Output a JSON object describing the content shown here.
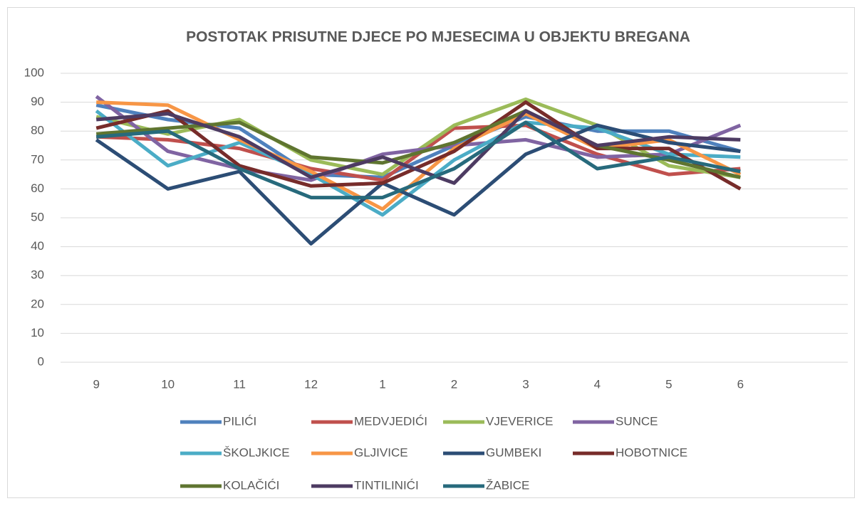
{
  "chart_data": {
    "type": "line",
    "title": "POSTOTAK PRISUTNE DJECE PO MJESECIMA U OBJEKTU BREGANA",
    "categories": [
      "9",
      "10",
      "11",
      "12",
      "1",
      "2",
      "3",
      "4",
      "5",
      "6",
      null
    ],
    "ylim": [
      0,
      100
    ],
    "yticks": [
      0,
      10,
      20,
      30,
      40,
      50,
      60,
      70,
      80,
      90,
      100
    ],
    "grid": true,
    "legend": "bottom",
    "series": [
      {
        "name": "PILIĆI",
        "color": "#4f81bd",
        "values": [
          89,
          84,
          81,
          65,
          64,
          75,
          85,
          80,
          80,
          73,
          null
        ]
      },
      {
        "name": "MEDVJEDIĆI",
        "color": "#c0504d",
        "values": [
          78,
          77,
          74,
          67,
          63,
          81,
          82,
          72,
          65,
          67,
          null
        ]
      },
      {
        "name": "VJEVERICE",
        "color": "#9bbb59",
        "values": [
          85,
          79,
          84,
          70,
          65,
          82,
          91,
          82,
          68,
          64,
          null
        ]
      },
      {
        "name": "SUNCE",
        "color": "#8064a2",
        "values": [
          92,
          73,
          67,
          63,
          72,
          75,
          77,
          71,
          72,
          82,
          null
        ]
      },
      {
        "name": "ŠKOLJKICE",
        "color": "#4bacc6",
        "values": [
          87,
          68,
          76,
          65,
          51,
          70,
          83,
          81,
          72,
          71,
          null
        ]
      },
      {
        "name": "GLJIVICE",
        "color": "#f79646",
        "values": [
          90,
          89,
          77,
          66,
          53,
          74,
          86,
          74,
          77,
          65,
          null
        ]
      },
      {
        "name": "GUMBEKI",
        "color": "#2c4d75",
        "values": [
          77,
          60,
          66,
          41,
          62,
          51,
          72,
          82,
          76,
          73,
          null
        ]
      },
      {
        "name": "HOBOTNICE",
        "color": "#772c2a",
        "values": [
          81,
          87,
          68,
          61,
          62,
          73,
          90,
          74,
          74,
          60,
          null
        ]
      },
      {
        "name": "KOLAČIĆI",
        "color": "#5f7530",
        "values": [
          79,
          81,
          83,
          71,
          69,
          76,
          87,
          75,
          70,
          64,
          null
        ]
      },
      {
        "name": "TINTILINIĆI",
        "color": "#4d3b62",
        "values": [
          84,
          86,
          78,
          64,
          71,
          62,
          87,
          75,
          78,
          77,
          null
        ]
      },
      {
        "name": "ŽABICE",
        "color": "#276a7c",
        "values": [
          78,
          80,
          67,
          57,
          57,
          67,
          83,
          67,
          71,
          66,
          null
        ]
      }
    ]
  }
}
